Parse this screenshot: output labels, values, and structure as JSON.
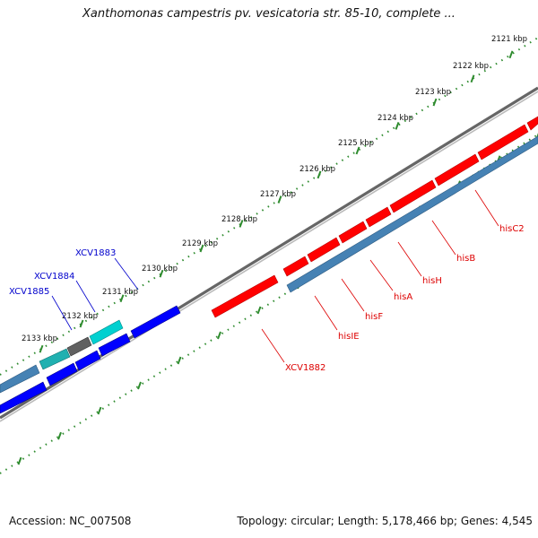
{
  "title": "Xanthomonas campestris pv. vesicatoria str. 85-10, complete ...",
  "footer": {
    "accession": "Accession: NC_007508",
    "summary": "Topology: circular; Length: 5,178,466 bp; Genes: 4,545"
  },
  "colors": {
    "forward_gene": "#ff0000",
    "reverse_gene": "#4682b4",
    "blue_gene": "#0000ff",
    "cyan_gene": "#00d0d0",
    "gray_gene": "#606060",
    "backbone": "#888888",
    "tick": "#2e8b2e",
    "label_red": "#dd0000",
    "label_blue": "#0000cc"
  },
  "kbp_labels": [
    "2121 kbp",
    "2122 kbp",
    "2123 kbp",
    "2124 kbp",
    "2125 kbp",
    "2126 kbp",
    "2127 kbp",
    "2128 kbp",
    "2129 kbp",
    "2130 kbp",
    "2131 kbp",
    "2132 kbp",
    "2133 kbp"
  ],
  "gene_labels_red": [
    "hisC2",
    "hisB",
    "hisH",
    "hisA",
    "hisF",
    "hisIE",
    "XCV1882"
  ],
  "gene_labels_blue": [
    "XCV1883",
    "XCV1884",
    "XCV1885"
  ]
}
